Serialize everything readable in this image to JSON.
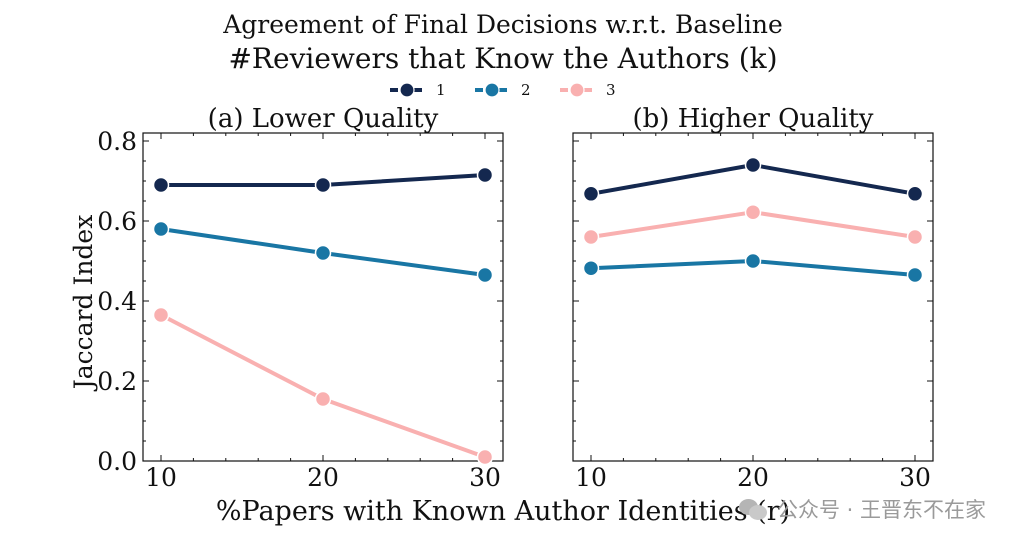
{
  "chart_data": {
    "type": "line",
    "title": "Agreement of Final Decisions w.r.t. Baseline",
    "legend_title": "#Reviewers that Know the Authors (k)",
    "legend_placement": "top-center",
    "xlabel": "%Papers with Known Author Identities (r)",
    "ylabel": "Jaccard Index",
    "x": [
      10,
      20,
      30
    ],
    "ylim": [
      0.0,
      0.8
    ],
    "yticks": [
      "0.0",
      "0.2",
      "0.4",
      "0.6",
      "0.8"
    ],
    "xticks": [
      "10",
      "20",
      "30"
    ],
    "series_colors": {
      "1": "#14284f",
      "2": "#1976a4",
      "3": "#f9b0b0"
    },
    "panels": [
      {
        "title": "(a) Lower Quality",
        "series": [
          {
            "name": "1",
            "values": [
              0.69,
              0.69,
              0.715
            ]
          },
          {
            "name": "2",
            "values": [
              0.58,
              0.52,
              0.465
            ]
          },
          {
            "name": "3",
            "values": [
              0.365,
              0.155,
              0.01
            ]
          }
        ]
      },
      {
        "title": "(b) Higher Quality",
        "series": [
          {
            "name": "1",
            "values": [
              0.668,
              0.74,
              0.668
            ]
          },
          {
            "name": "2",
            "values": [
              0.482,
              0.5,
              0.465
            ]
          },
          {
            "name": "3",
            "values": [
              0.56,
              0.622,
              0.56
            ]
          }
        ]
      }
    ]
  },
  "watermark": {
    "text": "公众号 · 王晋东不在家",
    "icon": "wechat-icon"
  }
}
